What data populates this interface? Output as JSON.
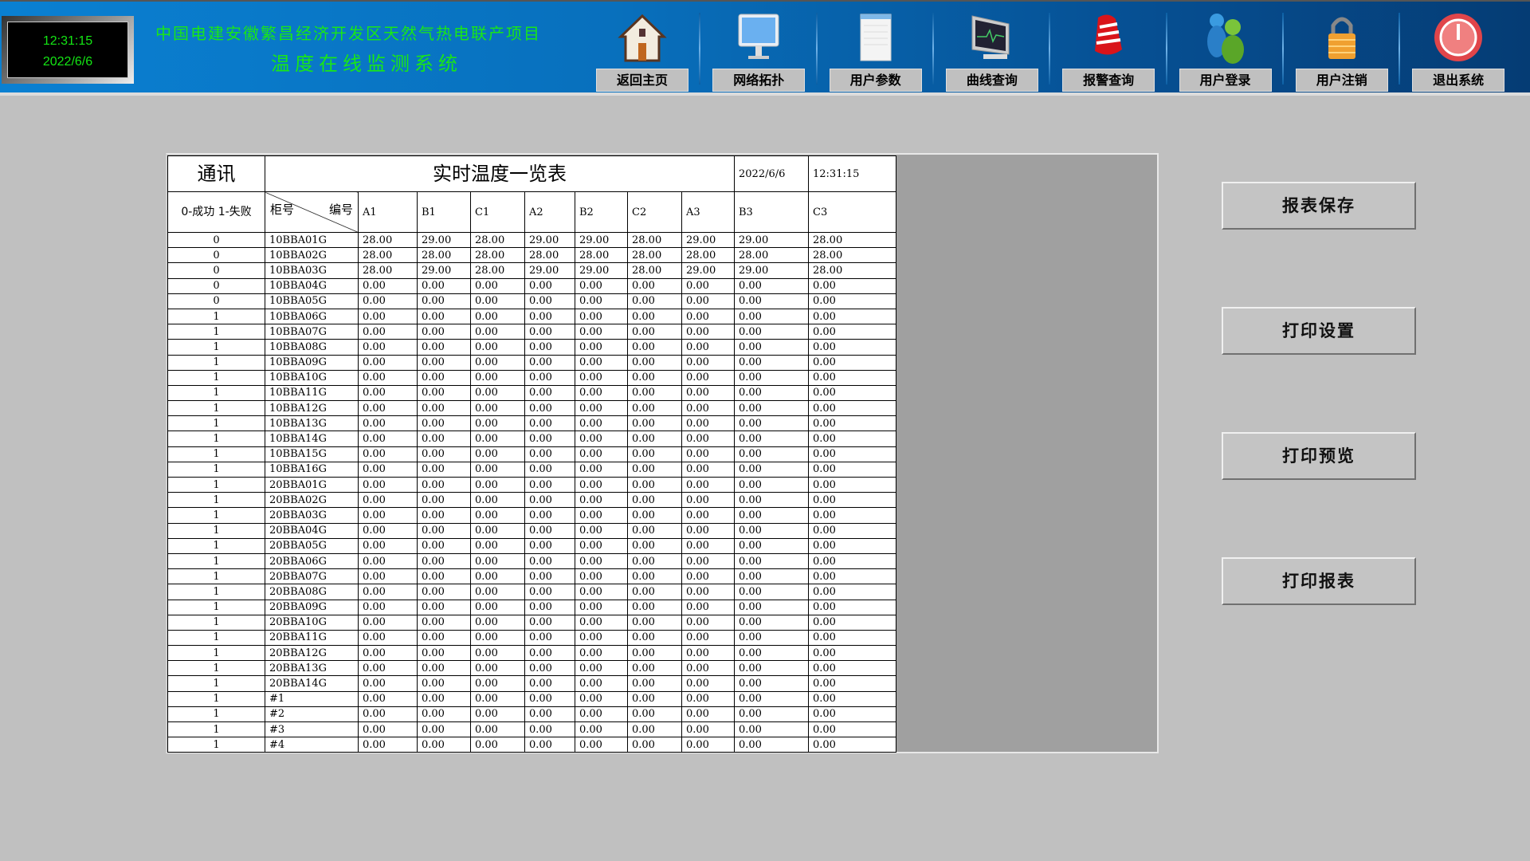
{
  "header": {
    "time": "12:31:15",
    "date": "2022/6/6",
    "project_title": "中国电建安徽繁昌经济开发区天然气热电联产项目",
    "system_title": "温度在线监测系统"
  },
  "nav": [
    {
      "label": "返回主页",
      "icon": "house-icon"
    },
    {
      "label": "网络拓扑",
      "icon": "monitor-icon"
    },
    {
      "label": "用户参数",
      "icon": "document-icon"
    },
    {
      "label": "曲线查询",
      "icon": "chart-monitor-icon"
    },
    {
      "label": "报警查询",
      "icon": "alarm-bell-icon"
    },
    {
      "label": "用户登录",
      "icon": "users-icon"
    },
    {
      "label": "用户注销",
      "icon": "lock-icon"
    },
    {
      "label": "退出系统",
      "icon": "power-icon"
    }
  ],
  "table": {
    "comm_title": "通讯",
    "title": "实时温度一览表",
    "date": "2022/6/6",
    "time": "12:31:15",
    "comm_legend": "0-成功 1-失败",
    "cabinet_label": "柜号",
    "number_label": "编号",
    "columns": [
      "A1",
      "B1",
      "C1",
      "A2",
      "B2",
      "C2",
      "A3",
      "B3",
      "C3"
    ],
    "rows": [
      [
        "0",
        "10BBA01G",
        "28.00",
        "29.00",
        "28.00",
        "29.00",
        "29.00",
        "28.00",
        "29.00",
        "29.00",
        "28.00"
      ],
      [
        "0",
        "10BBA02G",
        "28.00",
        "28.00",
        "28.00",
        "28.00",
        "28.00",
        "28.00",
        "28.00",
        "28.00",
        "28.00"
      ],
      [
        "0",
        "10BBA03G",
        "28.00",
        "29.00",
        "28.00",
        "29.00",
        "29.00",
        "28.00",
        "29.00",
        "29.00",
        "28.00"
      ],
      [
        "0",
        "10BBA04G",
        "0.00",
        "0.00",
        "0.00",
        "0.00",
        "0.00",
        "0.00",
        "0.00",
        "0.00",
        "0.00"
      ],
      [
        "0",
        "10BBA05G",
        "0.00",
        "0.00",
        "0.00",
        "0.00",
        "0.00",
        "0.00",
        "0.00",
        "0.00",
        "0.00"
      ],
      [
        "1",
        "10BBA06G",
        "0.00",
        "0.00",
        "0.00",
        "0.00",
        "0.00",
        "0.00",
        "0.00",
        "0.00",
        "0.00"
      ],
      [
        "1",
        "10BBA07G",
        "0.00",
        "0.00",
        "0.00",
        "0.00",
        "0.00",
        "0.00",
        "0.00",
        "0.00",
        "0.00"
      ],
      [
        "1",
        "10BBA08G",
        "0.00",
        "0.00",
        "0.00",
        "0.00",
        "0.00",
        "0.00",
        "0.00",
        "0.00",
        "0.00"
      ],
      [
        "1",
        "10BBA09G",
        "0.00",
        "0.00",
        "0.00",
        "0.00",
        "0.00",
        "0.00",
        "0.00",
        "0.00",
        "0.00"
      ],
      [
        "1",
        "10BBA10G",
        "0.00",
        "0.00",
        "0.00",
        "0.00",
        "0.00",
        "0.00",
        "0.00",
        "0.00",
        "0.00"
      ],
      [
        "1",
        "10BBA11G",
        "0.00",
        "0.00",
        "0.00",
        "0.00",
        "0.00",
        "0.00",
        "0.00",
        "0.00",
        "0.00"
      ],
      [
        "1",
        "10BBA12G",
        "0.00",
        "0.00",
        "0.00",
        "0.00",
        "0.00",
        "0.00",
        "0.00",
        "0.00",
        "0.00"
      ],
      [
        "1",
        "10BBA13G",
        "0.00",
        "0.00",
        "0.00",
        "0.00",
        "0.00",
        "0.00",
        "0.00",
        "0.00",
        "0.00"
      ],
      [
        "1",
        "10BBA14G",
        "0.00",
        "0.00",
        "0.00",
        "0.00",
        "0.00",
        "0.00",
        "0.00",
        "0.00",
        "0.00"
      ],
      [
        "1",
        "10BBA15G",
        "0.00",
        "0.00",
        "0.00",
        "0.00",
        "0.00",
        "0.00",
        "0.00",
        "0.00",
        "0.00"
      ],
      [
        "1",
        "10BBA16G",
        "0.00",
        "0.00",
        "0.00",
        "0.00",
        "0.00",
        "0.00",
        "0.00",
        "0.00",
        "0.00"
      ],
      [
        "1",
        "20BBA01G",
        "0.00",
        "0.00",
        "0.00",
        "0.00",
        "0.00",
        "0.00",
        "0.00",
        "0.00",
        "0.00"
      ],
      [
        "1",
        "20BBA02G",
        "0.00",
        "0.00",
        "0.00",
        "0.00",
        "0.00",
        "0.00",
        "0.00",
        "0.00",
        "0.00"
      ],
      [
        "1",
        "20BBA03G",
        "0.00",
        "0.00",
        "0.00",
        "0.00",
        "0.00",
        "0.00",
        "0.00",
        "0.00",
        "0.00"
      ],
      [
        "1",
        "20BBA04G",
        "0.00",
        "0.00",
        "0.00",
        "0.00",
        "0.00",
        "0.00",
        "0.00",
        "0.00",
        "0.00"
      ],
      [
        "1",
        "20BBA05G",
        "0.00",
        "0.00",
        "0.00",
        "0.00",
        "0.00",
        "0.00",
        "0.00",
        "0.00",
        "0.00"
      ],
      [
        "1",
        "20BBA06G",
        "0.00",
        "0.00",
        "0.00",
        "0.00",
        "0.00",
        "0.00",
        "0.00",
        "0.00",
        "0.00"
      ],
      [
        "1",
        "20BBA07G",
        "0.00",
        "0.00",
        "0.00",
        "0.00",
        "0.00",
        "0.00",
        "0.00",
        "0.00",
        "0.00"
      ],
      [
        "1",
        "20BBA08G",
        "0.00",
        "0.00",
        "0.00",
        "0.00",
        "0.00",
        "0.00",
        "0.00",
        "0.00",
        "0.00"
      ],
      [
        "1",
        "20BBA09G",
        "0.00",
        "0.00",
        "0.00",
        "0.00",
        "0.00",
        "0.00",
        "0.00",
        "0.00",
        "0.00"
      ],
      [
        "1",
        "20BBA10G",
        "0.00",
        "0.00",
        "0.00",
        "0.00",
        "0.00",
        "0.00",
        "0.00",
        "0.00",
        "0.00"
      ],
      [
        "1",
        "20BBA11G",
        "0.00",
        "0.00",
        "0.00",
        "0.00",
        "0.00",
        "0.00",
        "0.00",
        "0.00",
        "0.00"
      ],
      [
        "1",
        "20BBA12G",
        "0.00",
        "0.00",
        "0.00",
        "0.00",
        "0.00",
        "0.00",
        "0.00",
        "0.00",
        "0.00"
      ],
      [
        "1",
        "20BBA13G",
        "0.00",
        "0.00",
        "0.00",
        "0.00",
        "0.00",
        "0.00",
        "0.00",
        "0.00",
        "0.00"
      ],
      [
        "1",
        "20BBA14G",
        "0.00",
        "0.00",
        "0.00",
        "0.00",
        "0.00",
        "0.00",
        "0.00",
        "0.00",
        "0.00"
      ],
      [
        "1",
        "#1",
        "0.00",
        "0.00",
        "0.00",
        "0.00",
        "0.00",
        "0.00",
        "0.00",
        "0.00",
        "0.00"
      ],
      [
        "1",
        "#2",
        "0.00",
        "0.00",
        "0.00",
        "0.00",
        "0.00",
        "0.00",
        "0.00",
        "0.00",
        "0.00"
      ],
      [
        "1",
        "#3",
        "0.00",
        "0.00",
        "0.00",
        "0.00",
        "0.00",
        "0.00",
        "0.00",
        "0.00",
        "0.00"
      ],
      [
        "1",
        "#4",
        "0.00",
        "0.00",
        "0.00",
        "0.00",
        "0.00",
        "0.00",
        "0.00",
        "0.00",
        "0.00"
      ]
    ]
  },
  "actions": {
    "save": "报表保存",
    "print_setup": "打印设置",
    "print_preview": "打印预览",
    "print": "打印报表"
  }
}
